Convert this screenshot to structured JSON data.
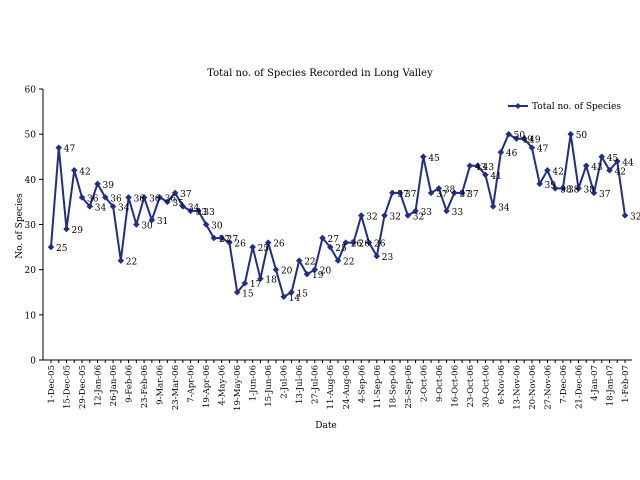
{
  "chart_data": {
    "type": "line",
    "title": "Total no. of Species Recorded in Long Valley",
    "xlabel": "Date",
    "ylabel": "No. of Species",
    "ylim": [
      0,
      60
    ],
    "yticks": [
      0,
      10,
      20,
      30,
      40,
      50,
      60
    ],
    "grid": false,
    "legend_position": "top-right",
    "series_color": "#1f2d8c",
    "x_tick_labels": [
      "1-Dec-05",
      "15-Dec-05",
      "29-Dec-05",
      "12-Jan-06",
      "26-Jan-06",
      "9-Feb-06",
      "23-Feb-06",
      "9-Mar-06",
      "23-Mar-06",
      "7-Apr-06",
      "19-Apr-06",
      "4-May-06",
      "19-May-06",
      "1-Jun-06",
      "15-Jun-06",
      "2-Jul-06",
      "13-Jul-06",
      "27-Jul-06",
      "11-Aug-06",
      "24-Aug-06",
      "4-Sep-06",
      "11-Sep-06",
      "18-Sep-06",
      "25-Sep-06",
      "2-Oct-06",
      "9-Oct-06",
      "16-Oct-06",
      "23-Oct-06",
      "30-Oct-06",
      "6-Nov-06",
      "13-Nov-06",
      "20-Nov-06",
      "27-Nov-06",
      "7-Dec-06",
      "21-Dec-06",
      "4-Jan-07",
      "18-Jan-07",
      "1-Feb-07"
    ],
    "series": [
      {
        "name": "Total no. of Species",
        "values": [
          25,
          47,
          29,
          42,
          36,
          34,
          39,
          36,
          34,
          22,
          36,
          30,
          36,
          31,
          36,
          35,
          37,
          34,
          33,
          33,
          30,
          27,
          27,
          26,
          15,
          17,
          25,
          18,
          26,
          20,
          14,
          15,
          22,
          19,
          20,
          27,
          25,
          22,
          26,
          26,
          32,
          26,
          23,
          32,
          37,
          37,
          32,
          33,
          45,
          37,
          38,
          33,
          37,
          37,
          43,
          43,
          41,
          34,
          46,
          50,
          49,
          49,
          47,
          39,
          42,
          38,
          38,
          50,
          38,
          43,
          37,
          45,
          42,
          44,
          32
        ],
        "data_labels": [
          "25",
          "47",
          "29",
          "42",
          "36",
          "34",
          "39",
          "36",
          "34",
          "22",
          "36",
          "30",
          "36",
          "31",
          "36",
          "35",
          "37",
          "34",
          "33",
          "33",
          "30",
          "27",
          "27",
          "26",
          "15",
          "17",
          "25",
          "18",
          "26",
          "20",
          "14",
          "15",
          "22",
          "19",
          "20",
          "27",
          "25",
          "22",
          "26",
          "26",
          "32",
          "26",
          "23",
          "32",
          "37",
          "37",
          "32",
          "33",
          "45",
          "37",
          "38",
          "33",
          "37",
          "37",
          "43",
          "43",
          "41",
          "34",
          "46",
          "50",
          "49",
          "49",
          "47",
          "39",
          "42",
          "38",
          "38",
          "50",
          "38",
          "43",
          "37",
          "45",
          "42",
          "44",
          "32"
        ]
      }
    ]
  }
}
